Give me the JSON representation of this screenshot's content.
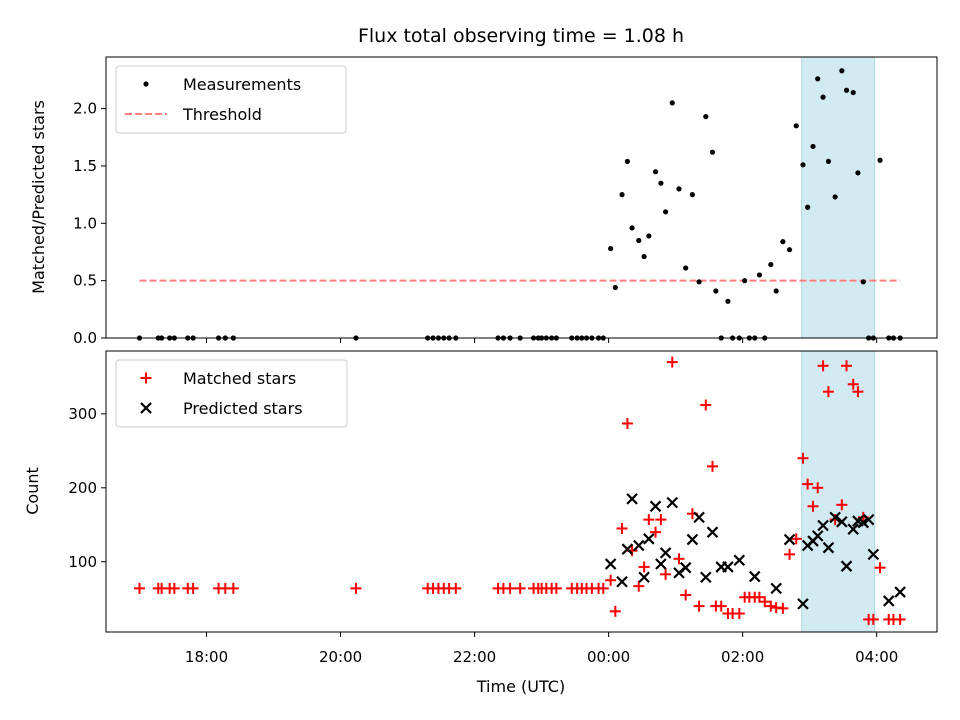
{
  "chart_data": {
    "title": "Flux total observing time = 1.08 h",
    "xlabel": "Time (UTC)",
    "x_unit": "hours (UTC, continuing past midnight)",
    "xlim": [
      16.5,
      28.9
    ],
    "x_ticks": [
      {
        "value": 18,
        "label": "18:00"
      },
      {
        "value": 20,
        "label": "20:00"
      },
      {
        "value": 22,
        "label": "22:00"
      },
      {
        "value": 24,
        "label": "00:00"
      },
      {
        "value": 26,
        "label": "02:00"
      },
      {
        "value": 28,
        "label": "04:00"
      }
    ],
    "highlight_span": {
      "start": 26.88,
      "end": 27.97,
      "color": "#add8e6"
    },
    "panels": [
      {
        "type": "scatter",
        "ylabel": "Matched/Predicted stars",
        "ylim": [
          0,
          2.45
        ],
        "y_ticks": [
          0.0,
          0.5,
          1.0,
          1.5,
          2.0
        ],
        "y_tick_labels": [
          "0.0",
          "0.5",
          "1.0",
          "1.5",
          "2.0"
        ],
        "legend": {
          "position": "top-left",
          "entries": [
            "Measurements",
            "Threshold"
          ]
        },
        "threshold": {
          "name": "Threshold",
          "value": 0.5,
          "x_range": [
            17.0,
            28.35
          ],
          "color": "#ff7f7f"
        },
        "series": [
          {
            "name": "Measurements",
            "color": "#000000",
            "marker": "dot",
            "x": [
              17.0,
              17.28,
              17.33,
              17.45,
              17.52,
              17.72,
              17.8,
              18.18,
              18.28,
              18.4,
              20.23,
              21.3,
              21.38,
              21.46,
              21.54,
              21.62,
              21.72,
              22.35,
              22.43,
              22.53,
              22.68,
              22.88,
              22.95,
              23.0,
              23.07,
              23.15,
              23.22,
              23.45,
              23.53,
              23.6,
              23.67,
              23.75,
              23.85,
              23.92,
              24.03,
              24.1,
              24.2,
              24.28,
              24.35,
              24.45,
              24.53,
              24.6,
              24.7,
              24.78,
              24.85,
              24.95,
              25.05,
              25.15,
              25.25,
              25.35,
              25.45,
              25.55,
              25.6,
              25.68,
              25.78,
              25.85,
              25.95,
              26.03,
              26.1,
              26.18,
              26.25,
              26.33,
              26.42,
              26.5,
              26.6,
              26.7,
              26.8,
              26.9,
              26.97,
              27.05,
              27.12,
              27.2,
              27.28,
              27.38,
              27.48,
              27.55,
              27.65,
              27.72,
              27.8,
              27.88,
              27.95,
              28.05,
              28.18,
              28.25,
              28.35
            ],
            "y": [
              0,
              0,
              0,
              0,
              0,
              0,
              0,
              0,
              0,
              0,
              0,
              0,
              0,
              0,
              0,
              0,
              0,
              0,
              0,
              0,
              0,
              0,
              0,
              0,
              0,
              0,
              0,
              0,
              0,
              0,
              0,
              0,
              0,
              0,
              0.78,
              0.44,
              1.25,
              1.54,
              0.96,
              0.85,
              0.71,
              0.89,
              1.45,
              1.35,
              1.1,
              2.05,
              1.3,
              0.61,
              1.25,
              0.49,
              1.93,
              1.62,
              0.41,
              0,
              0.32,
              0,
              0,
              0.5,
              0,
              0,
              0.55,
              0,
              0.64,
              0.41,
              0.84,
              0.77,
              1.85,
              1.51,
              1.14,
              1.67,
              2.26,
              2.1,
              1.54,
              1.23,
              2.33,
              2.16,
              2.14,
              1.44,
              0.49,
              0,
              0,
              1.55,
              0,
              0,
              0
            ]
          }
        ]
      },
      {
        "type": "scatter",
        "ylabel": "Count",
        "ylim": [
          5,
          385
        ],
        "y_ticks": [
          100,
          200,
          300
        ],
        "y_tick_labels": [
          "100",
          "200",
          "300"
        ],
        "legend": {
          "position": "top-left",
          "entries": [
            "Matched stars",
            "Predicted stars"
          ]
        },
        "series": [
          {
            "name": "Matched stars",
            "color": "#ff0000",
            "marker": "plus",
            "x": [
              17.0,
              17.28,
              17.33,
              17.45,
              17.52,
              17.72,
              17.8,
              18.18,
              18.28,
              18.4,
              20.23,
              21.3,
              21.38,
              21.46,
              21.54,
              21.62,
              21.72,
              22.35,
              22.43,
              22.53,
              22.68,
              22.88,
              22.95,
              23.0,
              23.07,
              23.15,
              23.22,
              23.45,
              23.53,
              23.6,
              23.67,
              23.75,
              23.85,
              23.92,
              24.03,
              24.1,
              24.2,
              24.28,
              24.35,
              24.45,
              24.53,
              24.6,
              24.7,
              24.78,
              24.85,
              24.95,
              25.05,
              25.15,
              25.25,
              25.35,
              25.45,
              25.55,
              25.6,
              25.68,
              25.78,
              25.85,
              25.95,
              26.03,
              26.1,
              26.18,
              26.25,
              26.33,
              26.42,
              26.5,
              26.6,
              26.7,
              26.8,
              26.9,
              26.97,
              27.05,
              27.12,
              27.2,
              27.28,
              27.38,
              27.48,
              27.55,
              27.65,
              27.72,
              27.8,
              27.88,
              27.95,
              28.05,
              28.18,
              28.25,
              28.35
            ],
            "y": [
              64,
              64,
              64,
              64,
              64,
              64,
              64,
              64,
              64,
              64,
              64,
              64,
              64,
              64,
              64,
              64,
              64,
              64,
              64,
              64,
              64,
              64,
              64,
              64,
              64,
              64,
              64,
              64,
              64,
              64,
              64,
              64,
              64,
              64,
              75,
              33,
              145,
              287,
              115,
              67,
              93,
              157,
              140,
              157,
              83,
              370,
              104,
              55,
              165,
              40,
              312,
              229,
              40,
              40,
              30,
              30,
              30,
              52,
              52,
              52,
              52,
              46,
              40,
              38,
              37,
              110,
              131,
              240,
              205,
              175,
              200,
              365,
              330,
              157,
              177,
              365,
              340,
              330,
              160,
              22,
              22,
              92,
              22,
              22,
              22
            ]
          },
          {
            "name": "Predicted stars",
            "color": "#000000",
            "marker": "x",
            "x": [
              24.03,
              24.2,
              24.28,
              24.35,
              24.45,
              24.53,
              24.6,
              24.7,
              24.78,
              24.85,
              24.95,
              25.05,
              25.15,
              25.25,
              25.35,
              25.45,
              25.55,
              25.68,
              25.78,
              25.95,
              26.18,
              26.5,
              26.7,
              26.9,
              26.97,
              27.05,
              27.12,
              27.2,
              27.28,
              27.38,
              27.48,
              27.55,
              27.65,
              27.72,
              27.8,
              27.88,
              27.95,
              28.18,
              28.35
            ],
            "y": [
              97,
              73,
              117,
              185,
              122,
              79,
              131,
              175,
              97,
              112,
              180,
              85,
              92,
              130,
              160,
              79,
              140,
              93,
              93,
              102,
              80,
              64,
              130,
              43,
              122,
              128,
              135,
              149,
              119,
              160,
              154,
              94,
              144,
              155,
              153,
              157,
              110,
              47,
              59
            ]
          }
        ]
      }
    ]
  }
}
